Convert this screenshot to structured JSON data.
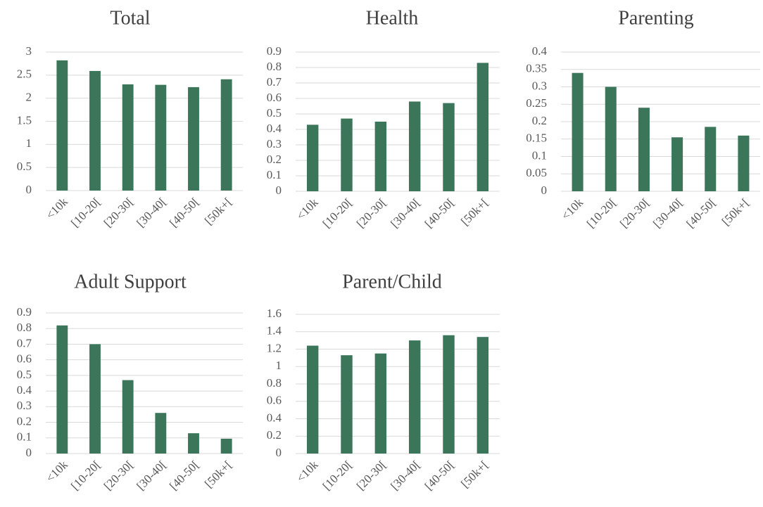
{
  "chart_data": [
    {
      "type": "bar",
      "title": "Total",
      "categories": [
        "<10k",
        "[10-20[",
        "[20-30[",
        "[30-40[",
        "[40-50[",
        "[50k+["
      ],
      "values": [
        2.82,
        2.59,
        2.3,
        2.29,
        2.24,
        2.41
      ],
      "color": "#3b765a",
      "ylim": [
        0,
        3
      ],
      "yticks": [
        0,
        0.5,
        1,
        1.5,
        2,
        2.5,
        3
      ],
      "grid": true
    },
    {
      "type": "bar",
      "title": "Health",
      "categories": [
        "<10k",
        "[10-20[",
        "[20-30[",
        "[30-40[",
        "[40-50[",
        "[50k+["
      ],
      "values": [
        0.43,
        0.47,
        0.45,
        0.58,
        0.57,
        0.83
      ],
      "color": "#3b765a",
      "ylim": [
        0,
        0.9
      ],
      "yticks": [
        0,
        0.1,
        0.2,
        0.3,
        0.4,
        0.5,
        0.6,
        0.7,
        0.8,
        0.9
      ],
      "grid": true
    },
    {
      "type": "bar",
      "title": "Parenting",
      "categories": [
        "<10k",
        "[10-20[",
        "[20-30[",
        "[30-40[",
        "[40-50[",
        "[50k+["
      ],
      "values": [
        0.34,
        0.3,
        0.24,
        0.155,
        0.185,
        0.16
      ],
      "color": "#3b765a",
      "ylim": [
        0,
        0.4
      ],
      "yticks": [
        0,
        0.05,
        0.1,
        0.15,
        0.2,
        0.25,
        0.3,
        0.35,
        0.4
      ],
      "grid": true
    },
    {
      "type": "bar",
      "title": "Adult Support",
      "categories": [
        "<10k",
        "[10-20[",
        "[20-30[",
        "[30-40[",
        "[40-50[",
        "[50k+["
      ],
      "values": [
        0.82,
        0.7,
        0.47,
        0.26,
        0.13,
        0.095
      ],
      "color": "#3b765a",
      "ylim": [
        0,
        0.9
      ],
      "yticks": [
        0,
        0.1,
        0.2,
        0.3,
        0.4,
        0.5,
        0.6,
        0.7,
        0.8,
        0.9
      ],
      "grid": true
    },
    {
      "type": "bar",
      "title": "Parent/Child",
      "categories": [
        "<10k",
        "[10-20[",
        "[20-30[",
        "[30-40[",
        "[40-50[",
        "[50k+["
      ],
      "values": [
        1.24,
        1.13,
        1.15,
        1.3,
        1.36,
        1.34
      ],
      "color": "#3b765a",
      "ylim": [
        0,
        1.6
      ],
      "yticks": [
        0,
        0.2,
        0.4,
        0.6,
        0.8,
        1,
        1.2,
        1.4,
        1.6
      ],
      "grid": true
    }
  ]
}
